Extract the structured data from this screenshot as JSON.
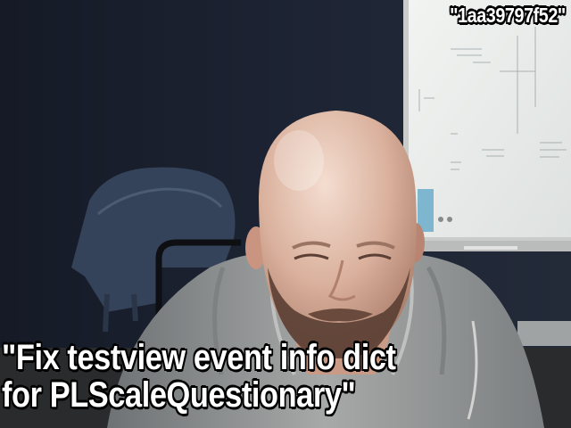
{
  "overlay": {
    "commit_hash": "\"1aa39797f52\"",
    "commit_message_line1": "\"Fix testview event info dict",
    "commit_message_line2": "for PLScaleQuestionary\""
  },
  "colors": {
    "wall": "#1c2230",
    "whiteboard": "#e9ecea",
    "hoodie": "#9a9c9c",
    "skin": "#d8b3a0",
    "caption_text": "#ffffff",
    "caption_outline": "#000000"
  }
}
